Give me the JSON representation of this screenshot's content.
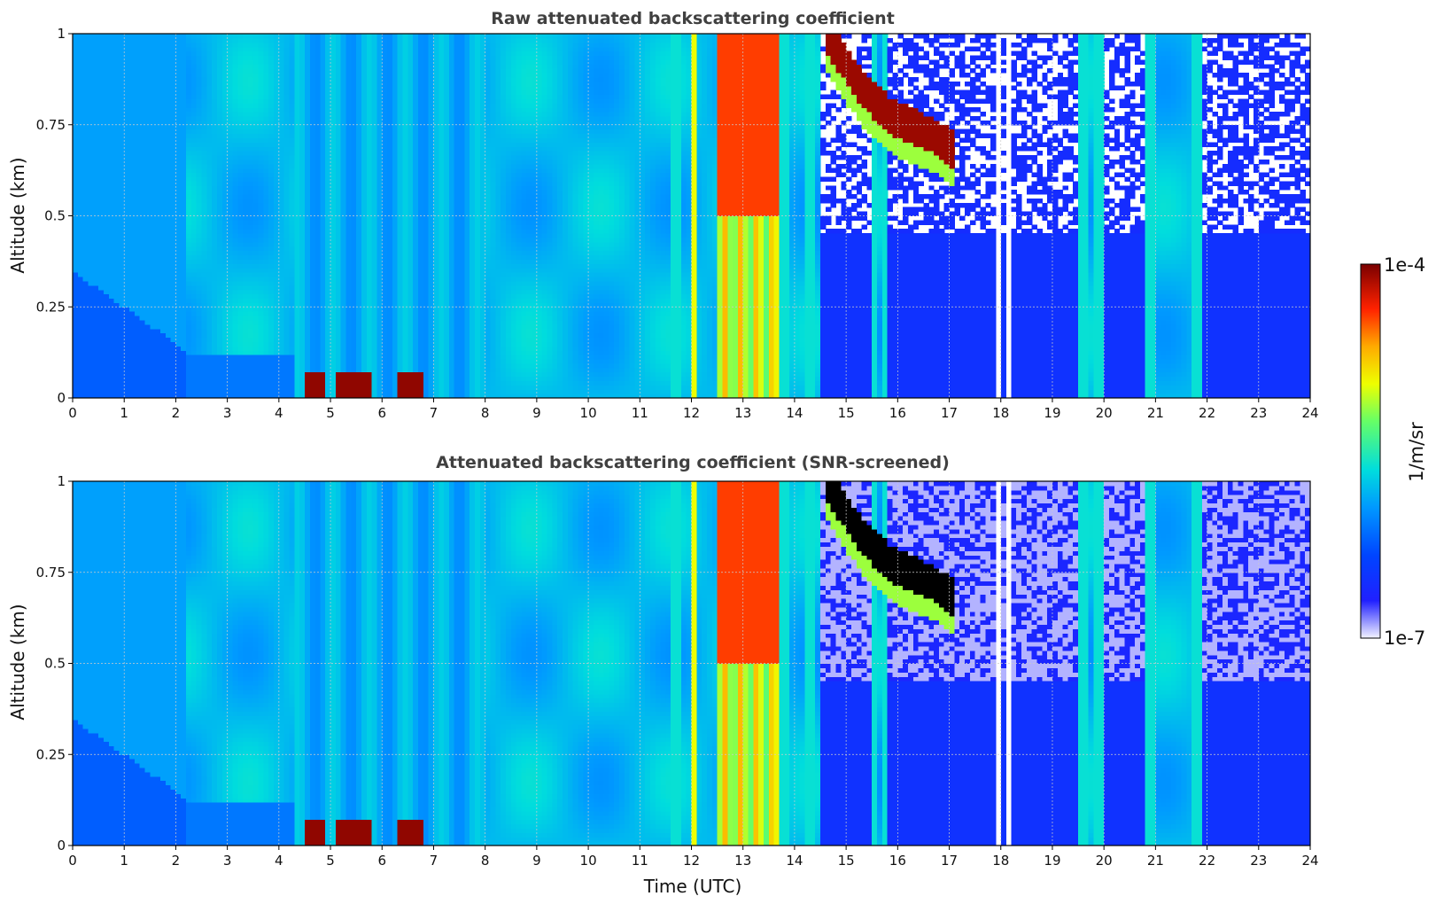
{
  "chart_data": [
    {
      "type": "heatmap",
      "title": "Raw attenuated backscattering coefficient",
      "xlabel": "",
      "ylabel": "Altitude (km)",
      "xlim": [
        0,
        24
      ],
      "ylim": [
        0,
        1
      ],
      "x_ticks": [
        "0",
        "1",
        "2",
        "3",
        "4",
        "5",
        "6",
        "7",
        "8",
        "9",
        "10",
        "11",
        "12",
        "13",
        "14",
        "15",
        "16",
        "17",
        "18",
        "19",
        "20",
        "21",
        "22",
        "23",
        "24"
      ],
      "y_ticks": [
        "0",
        "0.25",
        "0.5",
        "0.75",
        "1"
      ],
      "grid": true,
      "screened": false
    },
    {
      "type": "heatmap",
      "title": "Attenuated backscattering coefficient (SNR-screened)",
      "xlabel": "Time (UTC)",
      "ylabel": "Altitude (km)",
      "xlim": [
        0,
        24
      ],
      "ylim": [
        0,
        1
      ],
      "x_ticks": [
        "0",
        "1",
        "2",
        "3",
        "4",
        "5",
        "6",
        "7",
        "8",
        "9",
        "10",
        "11",
        "12",
        "13",
        "14",
        "15",
        "16",
        "17",
        "18",
        "19",
        "20",
        "21",
        "22",
        "23",
        "24"
      ],
      "y_ticks": [
        "0",
        "0.25",
        "0.5",
        "0.75",
        "1"
      ],
      "grid": true,
      "screened": true
    }
  ],
  "colorbar": {
    "label": "1/m/sr",
    "max_label": "1e-4",
    "min_label": "1e-7",
    "colormap": "jet-like (white → blue → cyan → yellow → red → dark red)",
    "scale": "log"
  },
  "features": {
    "low_level_blocks_x": [
      [
        4.5,
        4.9
      ],
      [
        5.1,
        5.8
      ],
      [
        6.3,
        6.8
      ]
    ],
    "red_band_x": [
      12.5,
      13.7
    ],
    "yellow_columns_x": [
      11.7,
      12.05,
      13.8,
      14.3,
      15.5,
      15.8,
      19.6,
      19.9,
      20.9,
      21.8
    ],
    "descending_layer": [
      [
        14.6,
        1.0
      ],
      [
        15.3,
        0.85
      ],
      [
        15.9,
        0.77
      ],
      [
        16.7,
        0.72
      ],
      [
        17.1,
        0.68
      ]
    ],
    "white_gap_columns_x": [
      17.7,
      17.95,
      18.1,
      18.3,
      18.5
    ]
  }
}
